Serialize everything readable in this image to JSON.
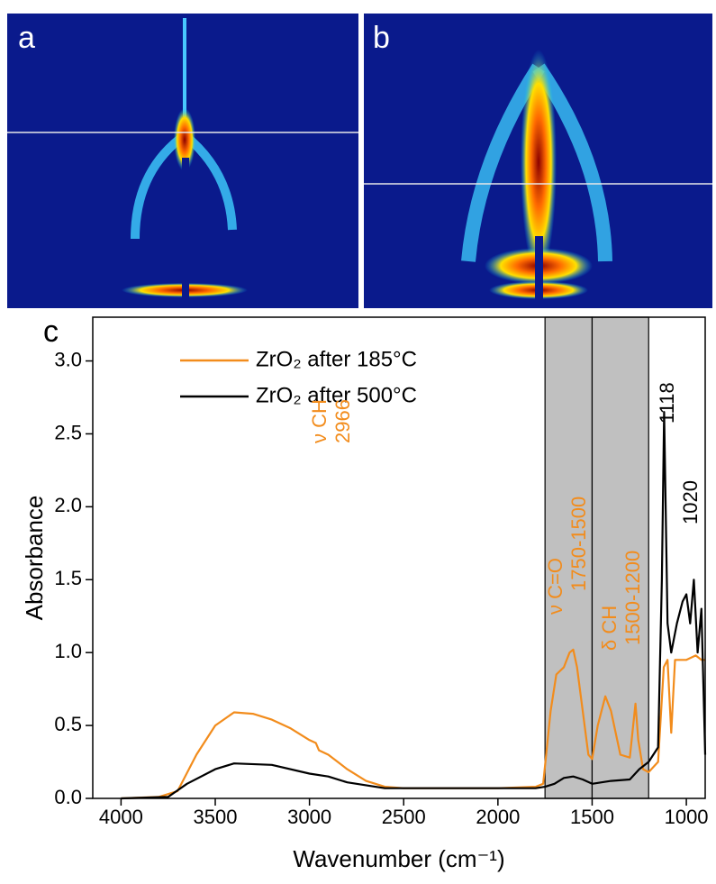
{
  "panels": [
    {
      "label": "a"
    },
    {
      "label": "b"
    }
  ],
  "chart_data": {
    "type": "line",
    "panel_label": "c",
    "xlabel": "Wavenumber (cm⁻¹)",
    "ylabel": "Absorbance",
    "xlim": [
      4150,
      900
    ],
    "ylim": [
      0,
      3.3
    ],
    "xticks": [
      4000,
      3500,
      3000,
      2500,
      2000,
      1500,
      1000
    ],
    "yticks": [
      {
        "value": 0,
        "label": "0.0"
      },
      {
        "value": 0.5,
        "label": "0.5"
      },
      {
        "value": 1,
        "label": "1.0"
      },
      {
        "value": 1.5,
        "label": "1.5"
      },
      {
        "value": 2,
        "label": "2.0"
      },
      {
        "value": 2.5,
        "label": "2.5"
      },
      {
        "value": 3,
        "label": "3.0"
      }
    ],
    "shaded_regions": [
      [
        1750,
        1500
      ],
      [
        1500,
        1200
      ]
    ],
    "shade_color": "#c0c0c0",
    "legend": "upper left",
    "series": [
      {
        "name": "ZrO₂ after 185°C",
        "color": "#f28c1c",
        "x": [
          4000,
          3800,
          3700,
          3600,
          3500,
          3400,
          3300,
          3200,
          3100,
          3000,
          2966,
          2950,
          2900,
          2850,
          2800,
          2700,
          2600,
          2500,
          2000,
          1800,
          1760,
          1720,
          1690,
          1650,
          1620,
          1600,
          1580,
          1550,
          1520,
          1500,
          1470,
          1430,
          1400,
          1350,
          1300,
          1270,
          1255,
          1230,
          1200,
          1150,
          1120,
          1100,
          1080,
          1060,
          1000,
          950,
          920,
          900
        ],
        "values": [
          0,
          0.01,
          0.05,
          0.3,
          0.5,
          0.59,
          0.58,
          0.54,
          0.48,
          0.4,
          0.38,
          0.33,
          0.3,
          0.25,
          0.2,
          0.12,
          0.08,
          0.07,
          0.07,
          0.08,
          0.1,
          0.6,
          0.85,
          0.9,
          1.0,
          1.02,
          0.9,
          0.6,
          0.3,
          0.27,
          0.5,
          0.7,
          0.6,
          0.3,
          0.28,
          0.65,
          0.4,
          0.2,
          0.18,
          0.25,
          0.9,
          0.95,
          0.45,
          0.95,
          0.95,
          0.98,
          0.95,
          0.95
        ]
      },
      {
        "name": "ZrO₂ after 500°C",
        "color": "#000000",
        "x": [
          4000,
          3750,
          3650,
          3500,
          3400,
          3200,
          3000,
          2900,
          2800,
          2600,
          2000,
          1800,
          1750,
          1700,
          1650,
          1600,
          1550,
          1500,
          1400,
          1300,
          1250,
          1200,
          1150,
          1130,
          1118,
          1100,
          1080,
          1050,
          1020,
          1000,
          980,
          960,
          940,
          920,
          900
        ],
        "values": [
          0,
          0.01,
          0.1,
          0.2,
          0.24,
          0.23,
          0.17,
          0.15,
          0.11,
          0.07,
          0.07,
          0.07,
          0.08,
          0.1,
          0.14,
          0.15,
          0.13,
          0.1,
          0.12,
          0.13,
          0.2,
          0.25,
          0.35,
          1.5,
          2.65,
          1.2,
          1.0,
          1.2,
          1.35,
          1.4,
          1.2,
          1.5,
          1.0,
          1.3,
          0.3
        ]
      }
    ],
    "annotations": [
      {
        "text": "ν CH",
        "color": "#f28c1c"
      },
      {
        "text": "2966",
        "color": "#f28c1c"
      },
      {
        "text": "ν C=O",
        "color": "#f28c1c"
      },
      {
        "text": "1750-1500",
        "color": "#f28c1c"
      },
      {
        "text": "δ CH",
        "color": "#f28c1c"
      },
      {
        "text": "1500-1200",
        "color": "#f28c1c"
      },
      {
        "text": "1118",
        "color": "#000000"
      },
      {
        "text": "1020",
        "color": "#000000"
      }
    ]
  }
}
